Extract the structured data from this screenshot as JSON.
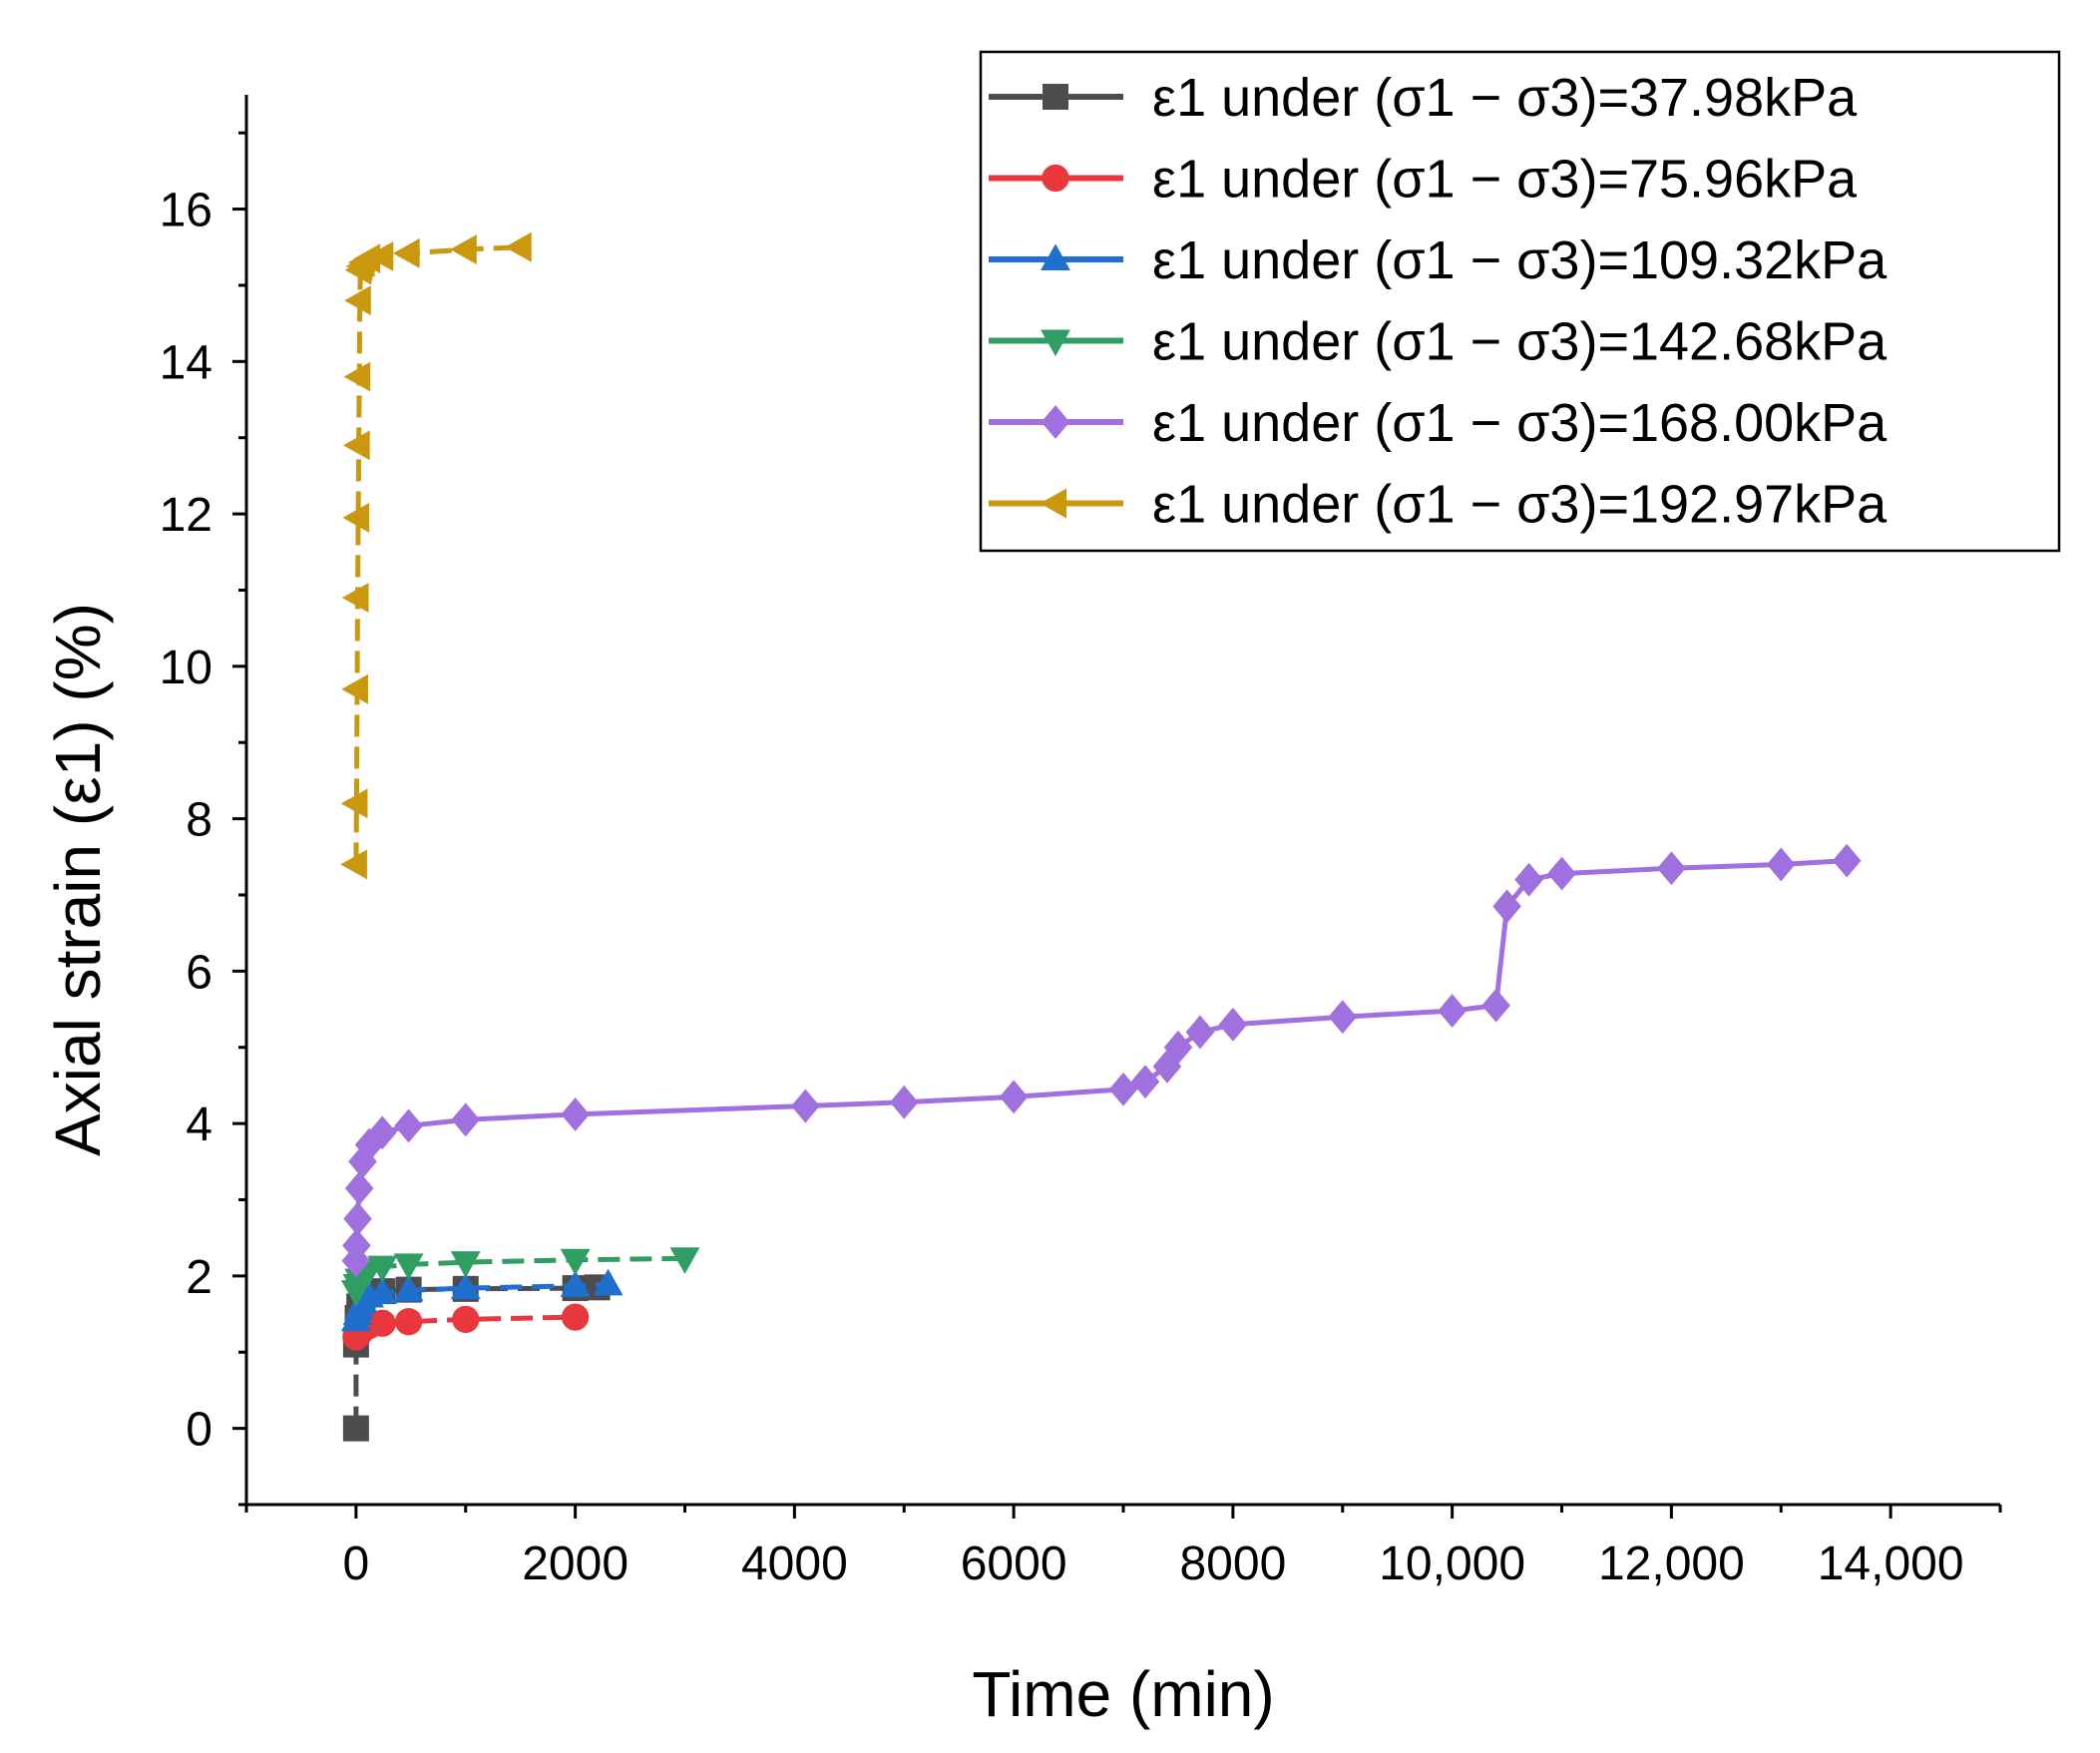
{
  "chart_data": {
    "type": "line",
    "title": "",
    "xlabel": "Time (min)",
    "ylabel": "Axial strain (ε1) (%)",
    "xlim": [
      -1000,
      15000
    ],
    "ylim": [
      -1,
      17.5
    ],
    "x_ticks": [
      0,
      2000,
      4000,
      6000,
      8000,
      10000,
      12000,
      14000
    ],
    "x_tick_labels": [
      "0",
      "2000",
      "4000",
      "6000",
      "8000",
      "10,000",
      "12,000",
      "14,000"
    ],
    "y_ticks": [
      0,
      2,
      4,
      6,
      8,
      10,
      12,
      14,
      16
    ],
    "y_tick_labels": [
      "0",
      "2",
      "4",
      "6",
      "8",
      "10",
      "12",
      "14",
      "16"
    ],
    "grid": false,
    "legend_position": "top-right",
    "series": [
      {
        "name": "ε1 under (σ1 − σ3)=37.98kPa",
        "color": "#4d4d4d",
        "marker": "square",
        "x": [
          0,
          0,
          15,
          30,
          60,
          120,
          240,
          480,
          1000,
          2000,
          2200
        ],
        "y": [
          0,
          1.1,
          1.45,
          1.6,
          1.7,
          1.76,
          1.8,
          1.82,
          1.83,
          1.84,
          1.85
        ]
      },
      {
        "name": "ε1 under (σ1 − σ3)=75.96kPa",
        "color": "#e8383d",
        "marker": "circle",
        "x": [
          0,
          15,
          30,
          60,
          120,
          240,
          480,
          1000,
          2000
        ],
        "y": [
          1.2,
          1.22,
          1.25,
          1.3,
          1.35,
          1.38,
          1.4,
          1.43,
          1.46
        ]
      },
      {
        "name": "ε1 under (σ1 − σ3)=109.32kPa",
        "color": "#1f6fce",
        "marker": "triangle-up",
        "x": [
          0,
          15,
          30,
          60,
          120,
          240,
          480,
          1000,
          2000,
          2300
        ],
        "y": [
          1.42,
          1.5,
          1.58,
          1.66,
          1.73,
          1.78,
          1.81,
          1.84,
          1.87,
          1.89
        ]
      },
      {
        "name": "ε1 under (σ1 − σ3)=142.68kPa",
        "color": "#2e9e62",
        "marker": "triangle-down",
        "x": [
          0,
          15,
          30,
          60,
          120,
          240,
          480,
          1000,
          2000,
          3000
        ],
        "y": [
          1.8,
          1.88,
          1.95,
          2.02,
          2.08,
          2.12,
          2.15,
          2.18,
          2.21,
          2.23
        ]
      },
      {
        "name": "ε1 under (σ1 − σ3)=168.00kPa",
        "color": "#a070de",
        "marker": "diamond",
        "x": [
          0,
          5,
          15,
          30,
          60,
          120,
          240,
          480,
          1000,
          2000,
          4100,
          5000,
          6000,
          7000,
          7200,
          7400,
          7500,
          7700,
          8000,
          9000,
          10000,
          10400,
          10500,
          10700,
          11000,
          12000,
          13000,
          13600
        ],
        "y": [
          2.2,
          2.4,
          2.75,
          3.15,
          3.5,
          3.72,
          3.88,
          3.97,
          4.05,
          4.12,
          4.23,
          4.28,
          4.35,
          4.45,
          4.55,
          4.75,
          5.0,
          5.2,
          5.3,
          5.4,
          5.48,
          5.55,
          6.85,
          7.2,
          7.28,
          7.35,
          7.4,
          7.45
        ]
      },
      {
        "name": "ε1 under (σ1 − σ3)=192.97kPa",
        "color": "#c9980e",
        "marker": "triangle-left",
        "x": [
          0,
          5,
          10,
          15,
          20,
          25,
          30,
          35,
          40,
          50,
          70,
          120,
          240,
          480,
          1000,
          1500
        ],
        "y": [
          7.4,
          8.2,
          9.7,
          10.9,
          11.95,
          12.9,
          13.8,
          14.8,
          15.2,
          15.25,
          15.3,
          15.35,
          15.38,
          15.42,
          15.47,
          15.5
        ]
      }
    ]
  }
}
